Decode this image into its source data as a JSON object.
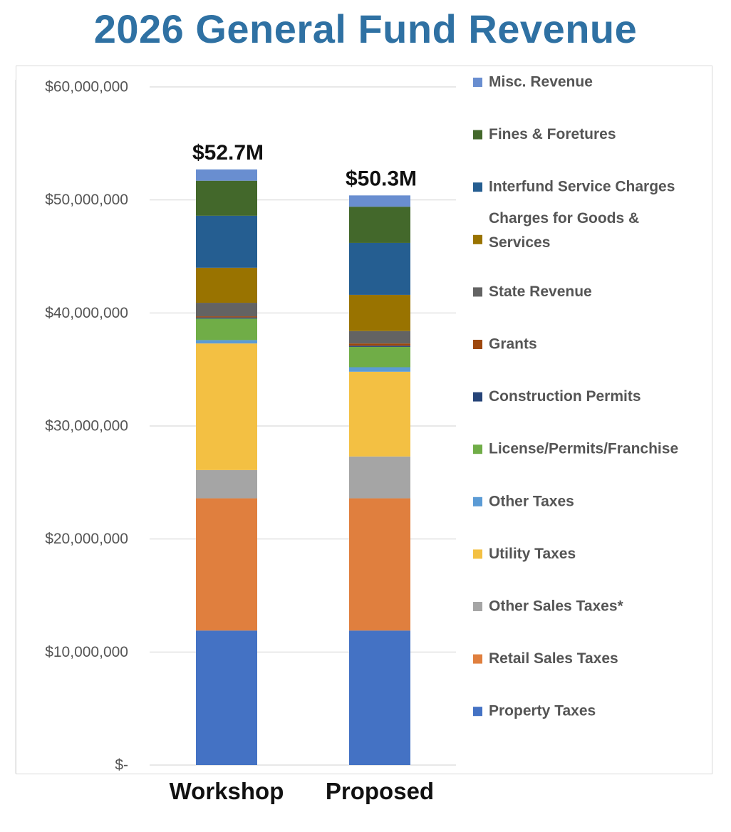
{
  "chart_data": {
    "type": "bar",
    "stacked": true,
    "title": "2026 General Fund Revenue",
    "xlabel": "",
    "ylabel": "",
    "ylim": [
      0,
      60000000
    ],
    "yticks": [
      0,
      10000000,
      20000000,
      30000000,
      40000000,
      50000000,
      60000000
    ],
    "ytick_labels": [
      "$-",
      "$10,000,000",
      "$20,000,000",
      "$30,000,000",
      "$40,000,000",
      "$50,000,000",
      "$60,000,000"
    ],
    "grid": true,
    "legend_position": "right",
    "categories": [
      "Workshop",
      "Proposed"
    ],
    "totals": [
      "$52.7M",
      "$50.3M"
    ],
    "series": [
      {
        "name": "Property Taxes",
        "color": "#4472c4",
        "values": [
          11900000,
          11900000
        ]
      },
      {
        "name": "Retail Sales Taxes",
        "color": "#e07f3e",
        "values": [
          11700000,
          11700000
        ]
      },
      {
        "name": "Other Sales Taxes*",
        "color": "#a5a5a5",
        "values": [
          2500000,
          3700000
        ]
      },
      {
        "name": "Utility Taxes",
        "color": "#f3c043",
        "values": [
          11200000,
          7500000
        ]
      },
      {
        "name": "Other Taxes",
        "color": "#5b9bd5",
        "values": [
          300000,
          400000
        ]
      },
      {
        "name": "License/Permits/Franchise",
        "color": "#70ad47",
        "values": [
          1900000,
          1800000
        ]
      },
      {
        "name": "Construction Permits",
        "color": "#264478",
        "values": [
          100000,
          100000
        ]
      },
      {
        "name": "Grants",
        "color": "#9e480e",
        "values": [
          100000,
          200000
        ]
      },
      {
        "name": "State Revenue",
        "color": "#636363",
        "values": [
          1200000,
          1100000
        ]
      },
      {
        "name": "Charges for Goods & Services",
        "color": "#997300",
        "values": [
          3100000,
          3200000
        ]
      },
      {
        "name": "Interfund Service Charges",
        "color": "#255e91",
        "values": [
          4600000,
          4600000
        ]
      },
      {
        "name": "Fines & Foretures",
        "color": "#43682b",
        "values": [
          3100000,
          3200000
        ]
      },
      {
        "name": "Misc. Revenue",
        "color": "#698ed0",
        "values": [
          1000000,
          1000000
        ]
      }
    ],
    "legend_order": [
      "Misc. Revenue",
      "Fines & Foretures",
      "Interfund Service Charges",
      "Charges for Goods & Services",
      "State Revenue",
      "Grants",
      "Construction Permits",
      "License/Permits/Franchise",
      "Other Taxes",
      "Utility Taxes",
      "Other Sales Taxes*",
      "Retail Sales Taxes",
      "Property Taxes"
    ],
    "legend_lines": {
      "Charges for Goods & Services": [
        "Charges for Goods &",
        "Services"
      ]
    }
  }
}
